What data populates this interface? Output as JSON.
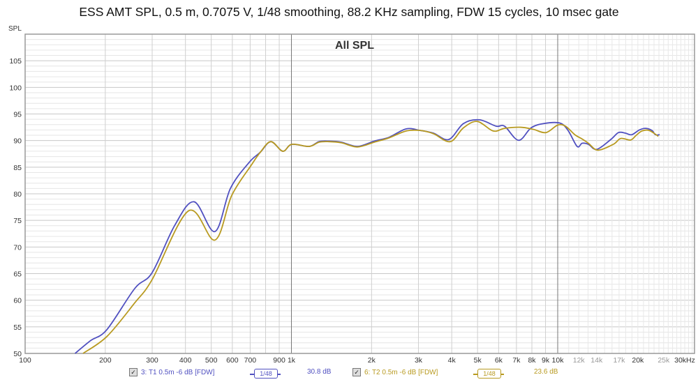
{
  "title": "ESS AMT SPL, 0.5 m, 0.7075 V, 1/48 smoothing, 88.2 KHz sampling, FDW 15 cycles, 10 msec gate",
  "chart_data": {
    "type": "line",
    "title": "ESS AMT SPL, 0.5 m, 0.7075 V, 1/48 smoothing, 88.2 KHz sampling, FDW 15 cycles, 10 msec gate",
    "subtitle": "All SPL",
    "ylabel": "SPL",
    "xlabel": "",
    "xscale": "log",
    "xlim": [
      100,
      32500
    ],
    "ylim": [
      50,
      110
    ],
    "grid": true,
    "yticks": [
      50,
      55,
      60,
      65,
      70,
      75,
      80,
      85,
      90,
      95,
      100,
      105
    ],
    "xticks": [
      {
        "v": 100,
        "label": "100"
      },
      {
        "v": 200,
        "label": "200"
      },
      {
        "v": 300,
        "label": "300"
      },
      {
        "v": 400,
        "label": "400"
      },
      {
        "v": 500,
        "label": "500"
      },
      {
        "v": 600,
        "label": "600"
      },
      {
        "v": 700,
        "label": "700"
      },
      {
        "v": 900,
        "label": "900"
      },
      {
        "v": 1000,
        "label": "1k"
      },
      {
        "v": 2000,
        "label": "2k"
      },
      {
        "v": 3000,
        "label": "3k"
      },
      {
        "v": 4000,
        "label": "4k"
      },
      {
        "v": 5000,
        "label": "5k"
      },
      {
        "v": 6000,
        "label": "6k"
      },
      {
        "v": 7000,
        "label": "7k"
      },
      {
        "v": 8000,
        "label": "8k"
      },
      {
        "v": 9000,
        "label": "9k"
      },
      {
        "v": 10000,
        "label": "10k"
      },
      {
        "v": 12000,
        "label": "12k",
        "minor": true
      },
      {
        "v": 14000,
        "label": "14k",
        "minor": true
      },
      {
        "v": 17000,
        "label": "17k",
        "minor": true
      },
      {
        "v": 20000,
        "label": "20k"
      },
      {
        "v": 25000,
        "label": "25k",
        "minor": true
      },
      {
        "v": 30000,
        "label": "30kHz"
      }
    ],
    "series": [
      {
        "name": "3: T1 0.5m -6 dB [FDW]",
        "color": "#5050c0",
        "smoothing": "1/48",
        "level": "30.8 dB",
        "x": [
          154,
          176,
          203,
          258,
          300,
          364,
          431,
          516,
          590,
          694,
          764,
          837,
          928,
          1003,
          1166,
          1269,
          1381,
          1539,
          1770,
          2046,
          2322,
          2698,
          3046,
          3414,
          3900,
          4427,
          5082,
          5875,
          6318,
          7129,
          7946,
          8863,
          10180,
          10940,
          11830,
          12350,
          13040,
          14020,
          15820,
          16910,
          17950,
          18960,
          20260,
          21390,
          22590,
          23280,
          24150
        ],
        "y": [
          50.0,
          52.4,
          54.5,
          62.2,
          65.2,
          74.0,
          78.5,
          72.9,
          81.0,
          85.9,
          87.8,
          89.8,
          88.0,
          89.3,
          88.9,
          89.8,
          89.9,
          89.7,
          88.9,
          89.9,
          90.6,
          92.2,
          91.9,
          91.4,
          90.2,
          93.2,
          93.9,
          92.7,
          92.7,
          90.05,
          92.4,
          93.2,
          93.3,
          91.9,
          88.9,
          89.5,
          89.3,
          88.35,
          90.2,
          91.5,
          91.4,
          91.1,
          92.0,
          92.3,
          91.9,
          91.1,
          91.1
        ]
      },
      {
        "name": "6: T2 0.5m -6 dB [FDW]",
        "color": "#b89a20",
        "smoothing": "1/48",
        "level": "23.6 dB",
        "x": [
          165,
          203,
          258,
          300,
          411,
          516,
          597,
          705,
          764,
          837,
          928,
          1003,
          1166,
          1269,
          1381,
          1539,
          1770,
          2046,
          2322,
          2698,
          3046,
          3414,
          3948,
          4427,
          4990,
          5720,
          6318,
          7260,
          8110,
          9040,
          9990,
          10700,
          11600,
          12350,
          13040,
          14150,
          16180,
          17250,
          18770,
          19630,
          20700,
          22050,
          23860
        ],
        "y": [
          50.0,
          53.2,
          59.5,
          63.9,
          76.8,
          71.3,
          79.7,
          85.3,
          87.8,
          89.8,
          88.0,
          89.3,
          88.9,
          89.7,
          89.8,
          89.6,
          88.8,
          89.7,
          90.5,
          91.8,
          91.9,
          91.3,
          89.8,
          92.4,
          93.6,
          91.8,
          92.3,
          92.5,
          92.1,
          91.5,
          92.9,
          92.7,
          91.1,
          90.3,
          89.5,
          88.2,
          89.3,
          90.4,
          90.1,
          90.9,
          91.8,
          91.9,
          90.8
        ]
      }
    ]
  },
  "legend": {
    "items": [
      {
        "label": "3: T1 0.5m -6 dB [FDW]",
        "check": "✓",
        "smoothing": "1/48",
        "level": "30.8 dB"
      },
      {
        "label": "6: T2 0.5m -6 dB [FDW]",
        "check": "✓",
        "smoothing": "1/48",
        "level": "23.6 dB"
      }
    ]
  },
  "colors": {
    "series1": "#5050c0",
    "series2": "#b89a20",
    "grid": "#dcdcdc",
    "major": "#888888"
  }
}
